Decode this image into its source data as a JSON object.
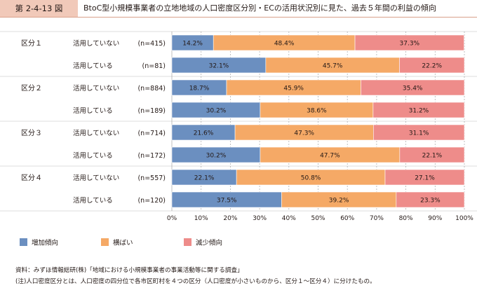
{
  "figure_label": "第 2-4-13 図",
  "figure_title": "BtoC型小規模事業者の立地地域の人口密度区分別・ECの活用状況別に見た、過去５年間の利益の傾向",
  "source": "資料：みずほ情報総研(株)「地域における小規模事業者の事業活動等に関する調査」",
  "note": "(注)人口密度区分とは、人口密度の四分位で各市区町村を４つの区分（人口密度が小さいものから、区分１～区分４）に分けたもの。",
  "colors": {
    "increase": "#6b8fc0",
    "flat": "#f5a966",
    "decrease": "#ee8c8a",
    "band": "#dcdcdc",
    "grid": "#b0b0b0"
  },
  "chart_data": {
    "type": "bar",
    "orientation": "horizontal",
    "stacked": true,
    "xlim": [
      0,
      100
    ],
    "xticks": [
      "0%",
      "10%",
      "20%",
      "30%",
      "40%",
      "50%",
      "60%",
      "70%",
      "80%",
      "90%",
      "100%"
    ],
    "legend_position": "bottom",
    "series": [
      {
        "name": "増加傾向",
        "color": "#6b8fc0"
      },
      {
        "name": "横ばい",
        "color": "#f5a966"
      },
      {
        "name": "減少傾向",
        "color": "#ee8c8a"
      }
    ],
    "groups": [
      {
        "label": "区分１",
        "rows": [
          {
            "status": "活用していない",
            "n": "(n=415)",
            "values": [
              14.2,
              48.4,
              37.3
            ],
            "labels": [
              "14.2%",
              "48.4%",
              "37.3%"
            ]
          },
          {
            "status": "活用している",
            "n": "(n=81)",
            "values": [
              32.1,
              45.7,
              22.2
            ],
            "labels": [
              "32.1%",
              "45.7%",
              "22.2%"
            ]
          }
        ]
      },
      {
        "label": "区分２",
        "rows": [
          {
            "status": "活用していない",
            "n": "(n=884)",
            "values": [
              18.7,
              45.9,
              35.4
            ],
            "labels": [
              "18.7%",
              "45.9%",
              "35.4%"
            ]
          },
          {
            "status": "活用している",
            "n": "(n=189)",
            "values": [
              30.2,
              38.6,
              31.2
            ],
            "labels": [
              "30.2%",
              "38.6%",
              "31.2%"
            ]
          }
        ]
      },
      {
        "label": "区分３",
        "rows": [
          {
            "status": "活用していない",
            "n": "(n=714)",
            "values": [
              21.6,
              47.3,
              31.1
            ],
            "labels": [
              "21.6%",
              "47.3%",
              "31.1%"
            ]
          },
          {
            "status": "活用している",
            "n": "(n=172)",
            "values": [
              30.2,
              47.7,
              22.1
            ],
            "labels": [
              "30.2%",
              "47.7%",
              "22.1%"
            ]
          }
        ]
      },
      {
        "label": "区分４",
        "rows": [
          {
            "status": "活用していない",
            "n": "(n=557)",
            "values": [
              22.1,
              50.8,
              27.1
            ],
            "labels": [
              "22.1%",
              "50.8%",
              "27.1%"
            ]
          },
          {
            "status": "活用している",
            "n": "(n=120)",
            "values": [
              37.5,
              39.2,
              23.3
            ],
            "labels": [
              "37.5%",
              "39.2%",
              "23.3%"
            ]
          }
        ]
      }
    ]
  }
}
